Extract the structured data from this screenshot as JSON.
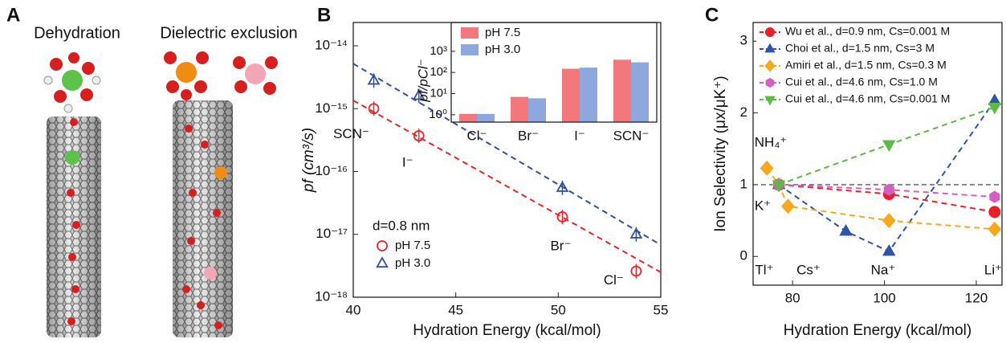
{
  "panel_a": {
    "label": "A",
    "titles": [
      "Dehydration",
      "Dielectric exclusion"
    ]
  },
  "chart_data": [
    {
      "type": "scatter",
      "panel_label": "B",
      "xlabel": "Hydration Energy (kcal/mol)",
      "ylabel": "pf (cm³/s)",
      "log_y": true,
      "xlim": [
        40,
        55
      ],
      "xticks": [
        40,
        45,
        50,
        55
      ],
      "ylim": [
        1e-18,
        2.35e-14
      ],
      "yticks": [
        {
          "value": 1e-18,
          "label": "10⁻¹⁸"
        },
        {
          "value": 1e-17,
          "label": "10⁻¹⁷"
        },
        {
          "value": 1e-16,
          "label": "10⁻¹⁶"
        },
        {
          "value": 1e-15,
          "label": "10⁻¹⁵"
        },
        {
          "value": 1e-14,
          "label": "10⁻¹⁴"
        }
      ],
      "series": [
        {
          "name": "pH 7.5",
          "color": "#e8262a",
          "marker": "circle",
          "x": [
            41,
            43.2,
            50.2,
            53.8
          ],
          "values": [
            1e-15,
            3.7e-16,
            1.9e-17,
            2.6e-18
          ]
        },
        {
          "name": "pH 3.0",
          "color": "#2f4fa0",
          "marker": "triangle",
          "x": [
            41,
            43.2,
            50.2,
            53.8
          ],
          "values": [
            2.8e-15,
            1.6e-15,
            5.5e-17,
            1e-17
          ]
        }
      ],
      "fits": [
        {
          "color": "#e8262a",
          "x": [
            40,
            55
          ],
          "values": [
            1.35e-15,
            2.5e-18
          ]
        },
        {
          "color": "#2f4fa0",
          "x": [
            40,
            55
          ],
          "values": [
            5.2e-15,
            6.8e-18
          ]
        }
      ],
      "point_labels": [
        "SCN⁻",
        "I⁻",
        "Br⁻",
        "Cl⁻"
      ],
      "legend_title": "d=0.8 nm",
      "legend": "lower left",
      "inset": {
        "type": "bar",
        "ylabel": "pf/pCl⁻",
        "log_y": true,
        "categories": [
          "Cl⁻",
          "Br⁻",
          "I⁻",
          "SCN⁻"
        ],
        "ylim": [
          0.45,
          23000
        ],
        "yticks": [
          {
            "value": 1,
            "label": "10⁰"
          },
          {
            "value": 10,
            "label": "10¹"
          },
          {
            "value": 100,
            "label": "10²"
          },
          {
            "value": 1000,
            "label": "10³"
          }
        ],
        "series": [
          {
            "name": "pH 7.5",
            "color": "#f3777b",
            "values": [
              1.1,
              7,
              150,
              400
            ]
          },
          {
            "name": "pH 3.0",
            "color": "#8ea8dd",
            "values": [
              1.1,
              6,
              170,
              300
            ]
          }
        ],
        "legend": "upper left"
      }
    },
    {
      "type": "line",
      "panel_label": "C",
      "xlabel": "Hydration Energy (kcal/mol)",
      "ylabel": "Ion Selectivity (μx/μK⁺)",
      "xlim": [
        71.4,
        125.6
      ],
      "xticks": [
        80,
        100,
        120
      ],
      "ylim": [
        -0.4,
        3.26
      ],
      "yticks": [
        0,
        1,
        2,
        3
      ],
      "hline": 1,
      "legend": "upper left",
      "series": [
        {
          "name": "Wu et al., d=0.9 nm, Cs=0.001 M",
          "color": "#e8202a",
          "marker": "circle",
          "x": [
            77,
            101,
            124
          ],
          "values": [
            1.0,
            0.87,
            0.62
          ]
        },
        {
          "name": "Choi et al., d=1.5 nm, Cs=3 M",
          "color": "#2c55a8",
          "marker": "triangle",
          "x": [
            77,
            91.6,
            101,
            124
          ],
          "values": [
            1.0,
            0.35,
            0.07,
            2.17
          ]
        },
        {
          "name": "Amiri et al., d=1.5 nm, Cs=0.3 M",
          "color": "#f7a81b",
          "marker": "diamond",
          "x": [
            74.4,
            77,
            79,
            101,
            124
          ],
          "values": [
            1.23,
            1.0,
            0.7,
            0.5,
            0.38
          ]
        },
        {
          "name": "Cui et al., d=4.6 nm, Cs=1.0 M",
          "color": "#d55fc1",
          "marker": "hexagon",
          "x": [
            77,
            101,
            124
          ],
          "values": [
            1.0,
            0.93,
            0.83
          ]
        },
        {
          "name": "Cui et al., d=4.6 nm, Cs=0.001 M",
          "color": "#5cba47",
          "marker": "triangle-down",
          "x": [
            77,
            101,
            124
          ],
          "values": [
            1.0,
            1.56,
            2.08
          ]
        }
      ],
      "ion_labels": [
        "NH₄⁺",
        "K⁺",
        "Tl⁺",
        "Cs⁺",
        "Na⁺",
        "Li⁺"
      ]
    }
  ]
}
